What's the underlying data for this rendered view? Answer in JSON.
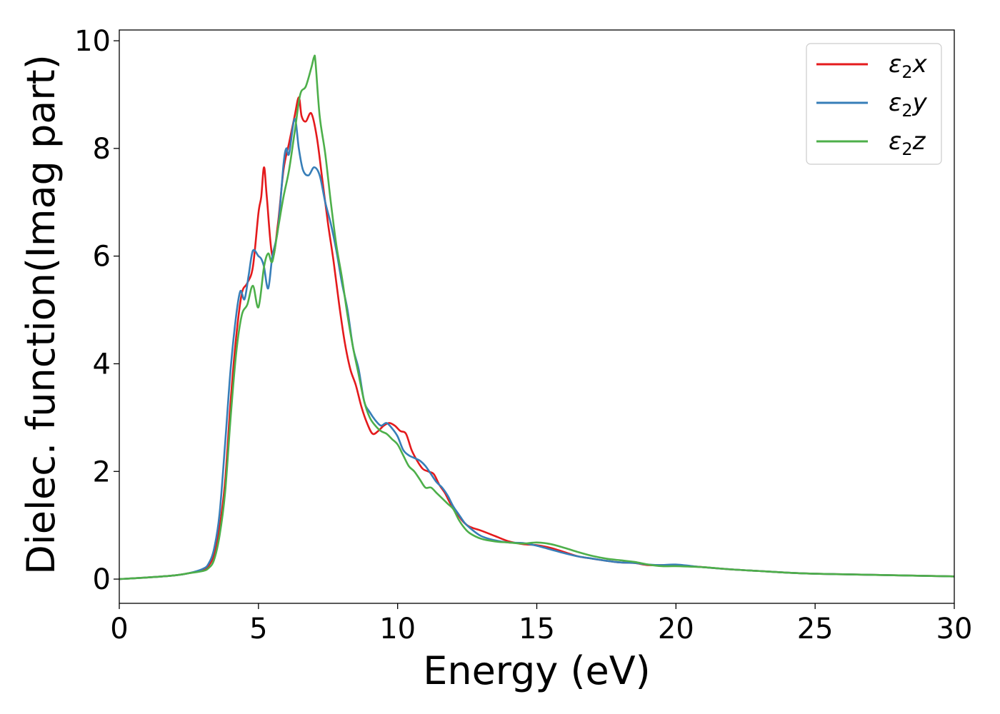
{
  "chart_data": {
    "type": "line",
    "title": "",
    "xlabel": "Energy (eV)",
    "ylabel": "Dielec. function(Imag part)",
    "xlim": [
      0,
      30
    ],
    "ylim": [
      -0.45,
      10.2
    ],
    "xticks": [
      0,
      5,
      10,
      15,
      20,
      25,
      30
    ],
    "yticks": [
      0,
      2,
      4,
      6,
      8,
      10
    ],
    "grid": false,
    "legend_position": "top-right",
    "series": [
      {
        "name": "ε2x",
        "legend_main": "ε",
        "legend_sub": "2",
        "legend_tail": "x",
        "color": "#e41a1c",
        "x": [
          0,
          1,
          2,
          2.5,
          3,
          3.2,
          3.4,
          3.6,
          3.8,
          4.0,
          4.2,
          4.4,
          4.6,
          4.8,
          5.0,
          5.1,
          5.2,
          5.3,
          5.5,
          5.7,
          5.9,
          6.1,
          6.3,
          6.45,
          6.55,
          6.7,
          6.9,
          7.1,
          7.3,
          7.5,
          7.7,
          7.9,
          8.1,
          8.3,
          8.5,
          8.7,
          8.9,
          9.1,
          9.3,
          9.5,
          9.7,
          9.9,
          10.1,
          10.3,
          10.5,
          10.7,
          10.9,
          11.1,
          11.3,
          11.5,
          11.7,
          11.9,
          12.1,
          12.3,
          12.5,
          12.7,
          13.0,
          13.5,
          14.0,
          14.5,
          15.0,
          15.5,
          16.0,
          16.5,
          17.0,
          17.5,
          18.0,
          18.5,
          19.0,
          19.5,
          20.0,
          21,
          22,
          23,
          24,
          25,
          26,
          27,
          28,
          29,
          30
        ],
        "values": [
          0,
          0.03,
          0.07,
          0.11,
          0.17,
          0.24,
          0.45,
          0.95,
          1.8,
          3.3,
          4.5,
          5.3,
          5.5,
          5.8,
          6.8,
          7.1,
          7.65,
          7.1,
          6.0,
          6.6,
          7.6,
          8.1,
          8.6,
          8.95,
          8.6,
          8.5,
          8.65,
          8.2,
          7.4,
          6.6,
          5.9,
          5.1,
          4.4,
          3.9,
          3.6,
          3.2,
          2.9,
          2.7,
          2.75,
          2.85,
          2.9,
          2.85,
          2.75,
          2.7,
          2.4,
          2.2,
          2.05,
          2.0,
          1.95,
          1.75,
          1.6,
          1.4,
          1.25,
          1.1,
          1.0,
          0.95,
          0.9,
          0.8,
          0.7,
          0.65,
          0.63,
          0.58,
          0.5,
          0.42,
          0.38,
          0.34,
          0.31,
          0.3,
          0.26,
          0.26,
          0.26,
          0.22,
          0.18,
          0.15,
          0.12,
          0.1,
          0.09,
          0.08,
          0.07,
          0.06,
          0.05
        ]
      },
      {
        "name": "ε2y",
        "legend_main": "ε",
        "legend_sub": "2",
        "legend_tail": "y",
        "color": "#377eb8",
        "x": [
          0,
          1,
          2,
          2.5,
          3,
          3.2,
          3.4,
          3.6,
          3.8,
          4.0,
          4.2,
          4.35,
          4.5,
          4.65,
          4.8,
          5.0,
          5.1,
          5.2,
          5.35,
          5.5,
          5.7,
          5.9,
          6.0,
          6.1,
          6.3,
          6.45,
          6.6,
          6.8,
          7.0,
          7.2,
          7.4,
          7.6,
          7.8,
          8.0,
          8.2,
          8.4,
          8.6,
          8.8,
          9.0,
          9.2,
          9.4,
          9.6,
          9.8,
          10.0,
          10.2,
          10.4,
          10.6,
          10.8,
          11.0,
          11.2,
          11.4,
          11.6,
          11.8,
          12.0,
          12.2,
          12.4,
          12.6,
          13.0,
          13.5,
          14.0,
          14.5,
          15.0,
          15.5,
          16.0,
          16.5,
          17.0,
          17.5,
          18.0,
          18.5,
          19.0,
          19.5,
          20.0,
          21,
          22,
          23,
          24,
          25,
          26,
          27,
          28,
          29,
          30
        ],
        "values": [
          0,
          0.03,
          0.07,
          0.11,
          0.19,
          0.28,
          0.55,
          1.2,
          2.5,
          3.9,
          4.9,
          5.35,
          5.2,
          5.65,
          6.1,
          6.0,
          5.95,
          5.8,
          5.4,
          6.0,
          6.5,
          7.7,
          8.0,
          7.9,
          8.55,
          8.0,
          7.6,
          7.5,
          7.65,
          7.5,
          7.0,
          6.6,
          6.1,
          5.5,
          5.0,
          4.3,
          3.9,
          3.3,
          3.1,
          2.95,
          2.85,
          2.9,
          2.8,
          2.65,
          2.4,
          2.3,
          2.25,
          2.2,
          2.1,
          1.95,
          1.8,
          1.7,
          1.55,
          1.35,
          1.2,
          1.05,
          0.95,
          0.8,
          0.72,
          0.68,
          0.67,
          0.62,
          0.55,
          0.48,
          0.42,
          0.38,
          0.34,
          0.31,
          0.3,
          0.27,
          0.26,
          0.27,
          0.22,
          0.18,
          0.15,
          0.12,
          0.1,
          0.09,
          0.08,
          0.07,
          0.06,
          0.05
        ]
      },
      {
        "name": "ε2z",
        "legend_main": "ε",
        "legend_sub": "2",
        "legend_tail": "z",
        "color": "#4daf4a",
        "x": [
          0,
          1,
          2,
          2.5,
          3,
          3.2,
          3.4,
          3.6,
          3.8,
          4.0,
          4.2,
          4.4,
          4.6,
          4.8,
          5.0,
          5.2,
          5.35,
          5.5,
          5.7,
          5.9,
          6.1,
          6.3,
          6.5,
          6.7,
          6.9,
          7.0,
          7.05,
          7.2,
          7.4,
          7.6,
          7.8,
          8.0,
          8.2,
          8.4,
          8.6,
          8.8,
          9.0,
          9.2,
          9.4,
          9.6,
          9.8,
          10.0,
          10.2,
          10.4,
          10.6,
          10.8,
          11.0,
          11.2,
          11.4,
          11.6,
          11.8,
          12.0,
          12.2,
          12.4,
          12.6,
          13.0,
          13.5,
          14.0,
          14.5,
          15.0,
          15.5,
          16.0,
          16.5,
          17.0,
          17.5,
          18.0,
          18.5,
          19.0,
          19.5,
          20.0,
          21,
          22,
          23,
          24,
          25,
          26,
          27,
          28,
          29,
          30
        ],
        "values": [
          0,
          0.03,
          0.07,
          0.11,
          0.15,
          0.2,
          0.35,
          0.8,
          1.6,
          3.0,
          4.2,
          4.9,
          5.1,
          5.45,
          5.05,
          5.8,
          6.05,
          5.9,
          6.5,
          7.1,
          7.6,
          8.3,
          9.0,
          9.15,
          9.5,
          9.7,
          9.6,
          8.6,
          7.9,
          7.0,
          6.2,
          5.6,
          4.9,
          4.3,
          3.8,
          3.3,
          3.0,
          2.85,
          2.75,
          2.7,
          2.6,
          2.5,
          2.3,
          2.1,
          2.0,
          1.85,
          1.7,
          1.7,
          1.6,
          1.5,
          1.4,
          1.3,
          1.1,
          0.95,
          0.85,
          0.75,
          0.7,
          0.68,
          0.66,
          0.68,
          0.65,
          0.58,
          0.5,
          0.43,
          0.38,
          0.35,
          0.32,
          0.27,
          0.24,
          0.24,
          0.22,
          0.18,
          0.15,
          0.12,
          0.1,
          0.09,
          0.08,
          0.07,
          0.06,
          0.05
        ]
      }
    ]
  }
}
